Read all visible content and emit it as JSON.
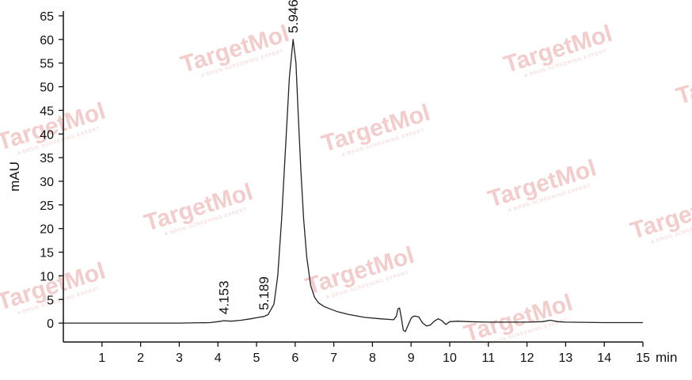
{
  "watermark": {
    "text": "TargetMol",
    "subtext": "A DRUG SCREENING EXPERT",
    "color": "#f3cccc"
  },
  "chart_data": {
    "type": "line",
    "title": "",
    "xlabel": "min",
    "ylabel": "mAU",
    "xlim": [
      0,
      15
    ],
    "ylim": [
      -4,
      66
    ],
    "x_ticks": [
      1,
      2,
      3,
      4,
      5,
      6,
      7,
      8,
      9,
      10,
      11,
      12,
      13,
      14,
      15
    ],
    "y_ticks": [
      0,
      5,
      10,
      15,
      20,
      25,
      30,
      35,
      40,
      45,
      50,
      55,
      60,
      65
    ],
    "grid": false,
    "line_color": "#222222",
    "series": [
      {
        "x": [
          0,
          1,
          2,
          3,
          3.8,
          4.0,
          4.153,
          4.35,
          4.6,
          4.85,
          5.05,
          5.189,
          5.3,
          5.45,
          5.55,
          5.65,
          5.75,
          5.85,
          5.946,
          6.02,
          6.08,
          6.15,
          6.22,
          6.3,
          6.4,
          6.5,
          6.6,
          6.75,
          6.9,
          7.1,
          7.4,
          7.8,
          8.2,
          8.55,
          8.62,
          8.66,
          8.7,
          8.75,
          8.8,
          8.85,
          8.92,
          9.0,
          9.05,
          9.1,
          9.2,
          9.3,
          9.4,
          9.5,
          9.6,
          9.7,
          9.8,
          9.9,
          10.0,
          10.2,
          10.5,
          11.0,
          11.5,
          12.0,
          12.4,
          12.6,
          12.8,
          13.0,
          14.0,
          15.0
        ],
        "y": [
          0,
          0,
          0,
          0,
          0.1,
          0.3,
          0.5,
          0.4,
          0.6,
          0.9,
          1.2,
          1.4,
          1.8,
          4.0,
          10.0,
          22.0,
          37.0,
          52.0,
          60.0,
          55.0,
          44.0,
          32.0,
          22.0,
          14.0,
          8.0,
          5.5,
          4.3,
          3.5,
          3.0,
          2.4,
          1.8,
          1.2,
          0.9,
          0.7,
          1.5,
          3.0,
          3.2,
          1.0,
          -1.5,
          -1.8,
          -0.5,
          1.0,
          1.4,
          1.5,
          1.3,
          0.0,
          -0.6,
          -0.4,
          0.4,
          0.9,
          0.5,
          -0.3,
          0.3,
          0.4,
          0.3,
          0.2,
          0.2,
          0.2,
          0.3,
          0.6,
          0.3,
          0.2,
          0.1,
          0.1
        ]
      }
    ],
    "peak_labels": [
      {
        "x": 4.153,
        "y": 0.5,
        "text": "4.153"
      },
      {
        "x": 5.189,
        "y": 1.4,
        "text": "5.189"
      },
      {
        "x": 5.946,
        "y": 60.0,
        "text": "5.946"
      }
    ]
  }
}
